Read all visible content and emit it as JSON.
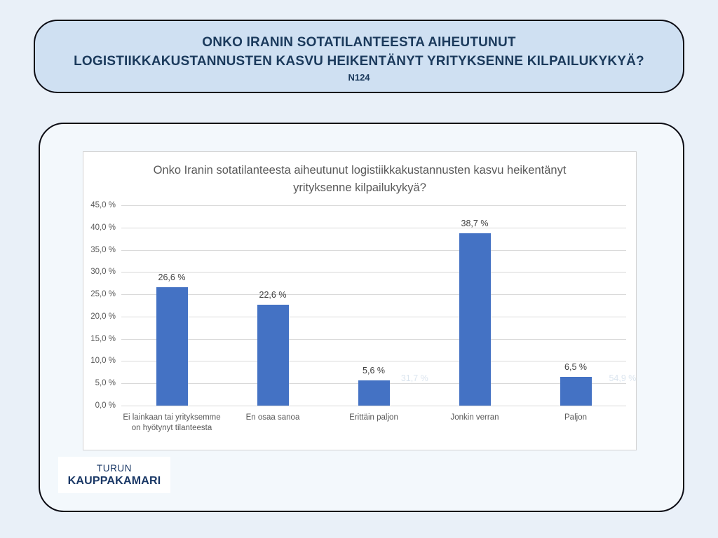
{
  "header": {
    "title_line1": "ONKO IRANIN SOTATILANTEESTA AIHEUTUNUT",
    "title_line2": "LOGISTIIKKAKUSTANNUSTEN KASVU HEIKENTÄNYT YRITYKSENNE KILPAILUKYKYÄ?",
    "sample_size": "N124"
  },
  "chart_data": {
    "type": "bar",
    "title": "Onko Iranin sotatilanteesta aiheutunut logistiikkakustannusten kasvu heikentänyt yrityksenne kilpailukykyä?",
    "categories": [
      "Ei lainkaan tai yrityksemme on hyötynyt tilanteesta",
      "En osaa sanoa",
      "Erittäin paljon",
      "Jonkin verran",
      "Paljon"
    ],
    "values": [
      26.6,
      22.6,
      5.6,
      38.7,
      6.5
    ],
    "value_labels": [
      "26,6 %",
      "22,6 %",
      "5,6 %",
      "38,7 %",
      "6,5 %"
    ],
    "xlabel": "",
    "ylabel": "",
    "ylim": [
      0,
      45
    ],
    "ytick_step": 5,
    "ytick_labels": [
      "0,0 %",
      "5,0 %",
      "10,0 %",
      "15,0 %",
      "20,0 %",
      "25,0 %",
      "30,0 %",
      "35,0 %",
      "40,0 %",
      "45,0 %"
    ],
    "grid": true,
    "legend": "none",
    "bar_color": "#4472c4",
    "gridline_color": "#d9d9d9",
    "ghost_labels": [
      "31,7 %",
      "54,9 %"
    ]
  },
  "logo": {
    "line1": "TURUN",
    "line2": "KAUPPAKAMARI"
  },
  "colors": {
    "page_background": "#e9f0f8",
    "banner_fill": "#cfe0f2",
    "banner_text": "#1b3a5c",
    "card_fill": "#f3f8fc",
    "outline": "#0c0c14",
    "chart_text": "#595959",
    "data_label_text": "#404040"
  }
}
